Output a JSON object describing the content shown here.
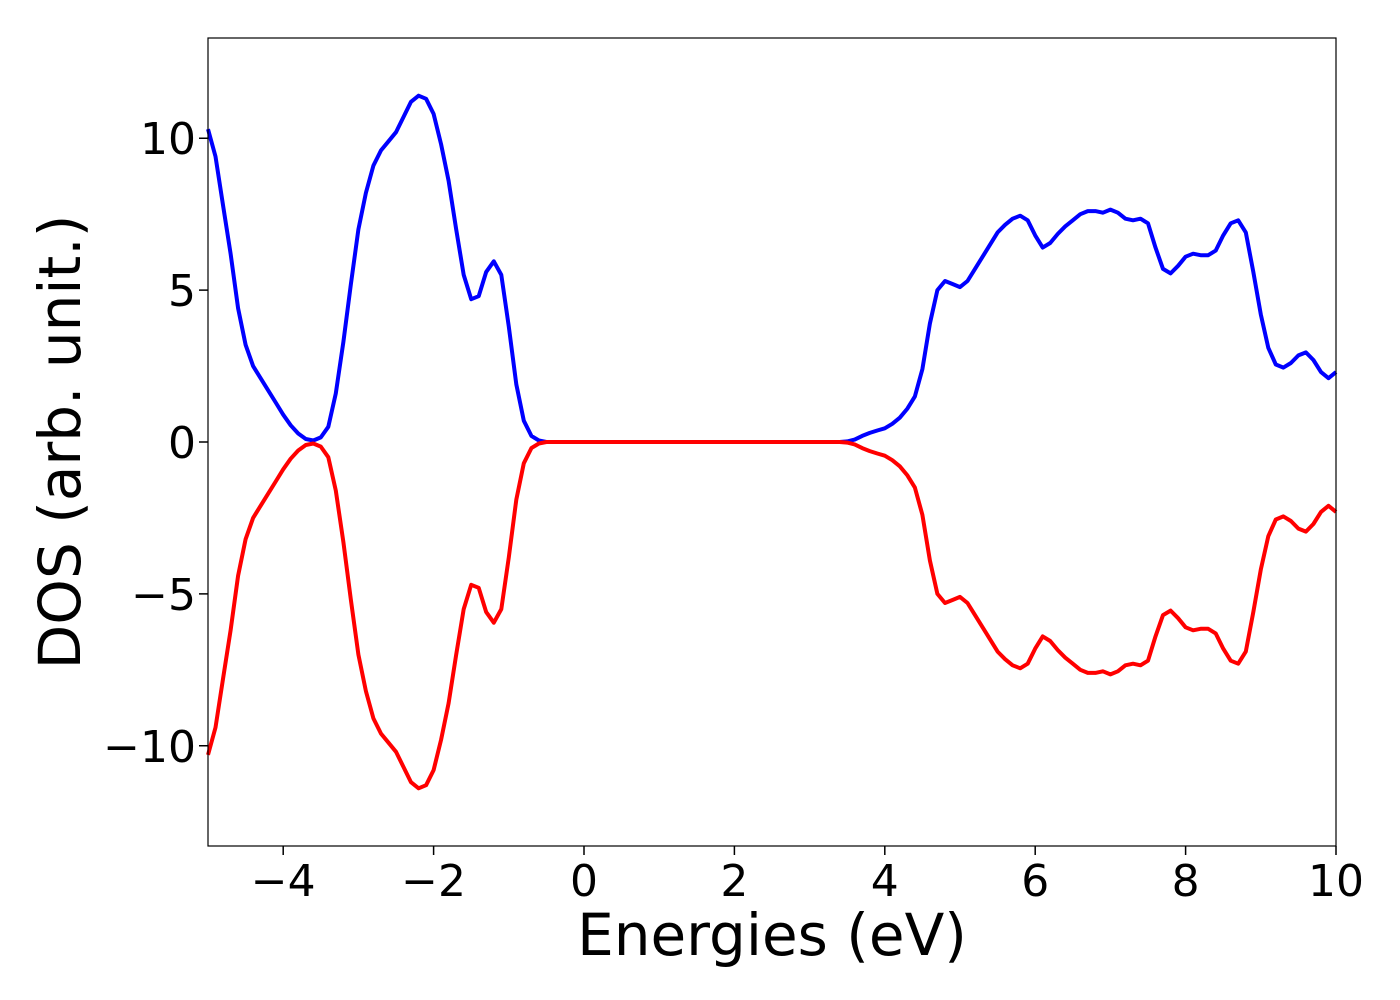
{
  "chart_data": {
    "type": "line",
    "xlabel": "Energies (eV)",
    "ylabel": "DOS (arb. unit.)",
    "xlim": [
      -5,
      10
    ],
    "ylim": [
      -13.3,
      13.3
    ],
    "x_ticks": [
      -4,
      -2,
      0,
      2,
      4,
      6,
      8,
      10
    ],
    "x_tick_labels": [
      "−4",
      "−2",
      "0",
      "2",
      "4",
      "6",
      "8",
      "10"
    ],
    "y_ticks": [
      -10,
      -5,
      0,
      5,
      10
    ],
    "y_tick_labels": [
      "−10",
      "−5",
      "0",
      "5",
      "10"
    ],
    "grid": false,
    "series": [
      {
        "color": "#0000ff",
        "points": [
          [
            -5.0,
            10.3
          ],
          [
            -4.9,
            9.4
          ],
          [
            -4.8,
            7.8
          ],
          [
            -4.7,
            6.2
          ],
          [
            -4.6,
            4.4
          ],
          [
            -4.5,
            3.2
          ],
          [
            -4.4,
            2.5
          ],
          [
            -4.3,
            2.1
          ],
          [
            -4.2,
            1.7
          ],
          [
            -4.1,
            1.3
          ],
          [
            -4.0,
            0.9
          ],
          [
            -3.9,
            0.55
          ],
          [
            -3.8,
            0.28
          ],
          [
            -3.7,
            0.1
          ],
          [
            -3.6,
            0.05
          ],
          [
            -3.5,
            0.15
          ],
          [
            -3.4,
            0.5
          ],
          [
            -3.3,
            1.6
          ],
          [
            -3.2,
            3.3
          ],
          [
            -3.1,
            5.2
          ],
          [
            -3.0,
            7.0
          ],
          [
            -2.9,
            8.2
          ],
          [
            -2.8,
            9.1
          ],
          [
            -2.7,
            9.6
          ],
          [
            -2.6,
            9.9
          ],
          [
            -2.5,
            10.2
          ],
          [
            -2.4,
            10.7
          ],
          [
            -2.3,
            11.2
          ],
          [
            -2.2,
            11.4
          ],
          [
            -2.1,
            11.3
          ],
          [
            -2.0,
            10.8
          ],
          [
            -1.9,
            9.8
          ],
          [
            -1.8,
            8.6
          ],
          [
            -1.7,
            7.0
          ],
          [
            -1.6,
            5.5
          ],
          [
            -1.5,
            4.7
          ],
          [
            -1.4,
            4.8
          ],
          [
            -1.3,
            5.6
          ],
          [
            -1.2,
            5.95
          ],
          [
            -1.1,
            5.5
          ],
          [
            -1.0,
            3.8
          ],
          [
            -0.9,
            1.9
          ],
          [
            -0.8,
            0.7
          ],
          [
            -0.7,
            0.2
          ],
          [
            -0.6,
            0.05
          ],
          [
            -0.5,
            0.0
          ],
          [
            0.0,
            0.0
          ],
          [
            1.0,
            0.0
          ],
          [
            2.0,
            0.0
          ],
          [
            3.0,
            0.0
          ],
          [
            3.4,
            0.0
          ],
          [
            3.5,
            0.02
          ],
          [
            3.6,
            0.08
          ],
          [
            3.7,
            0.2
          ],
          [
            3.8,
            0.3
          ],
          [
            3.9,
            0.38
          ],
          [
            4.0,
            0.45
          ],
          [
            4.1,
            0.6
          ],
          [
            4.2,
            0.8
          ],
          [
            4.3,
            1.1
          ],
          [
            4.4,
            1.5
          ],
          [
            4.5,
            2.4
          ],
          [
            4.6,
            3.9
          ],
          [
            4.7,
            5.0
          ],
          [
            4.8,
            5.3
          ],
          [
            4.9,
            5.2
          ],
          [
            5.0,
            5.1
          ],
          [
            5.1,
            5.3
          ],
          [
            5.2,
            5.7
          ],
          [
            5.3,
            6.1
          ],
          [
            5.4,
            6.5
          ],
          [
            5.5,
            6.9
          ],
          [
            5.6,
            7.15
          ],
          [
            5.7,
            7.35
          ],
          [
            5.8,
            7.45
          ],
          [
            5.9,
            7.3
          ],
          [
            6.0,
            6.8
          ],
          [
            6.1,
            6.4
          ],
          [
            6.2,
            6.55
          ],
          [
            6.3,
            6.85
          ],
          [
            6.4,
            7.1
          ],
          [
            6.5,
            7.3
          ],
          [
            6.6,
            7.5
          ],
          [
            6.7,
            7.6
          ],
          [
            6.8,
            7.6
          ],
          [
            6.9,
            7.55
          ],
          [
            7.0,
            7.65
          ],
          [
            7.1,
            7.55
          ],
          [
            7.2,
            7.35
          ],
          [
            7.3,
            7.3
          ],
          [
            7.4,
            7.35
          ],
          [
            7.5,
            7.2
          ],
          [
            7.6,
            6.4
          ],
          [
            7.7,
            5.7
          ],
          [
            7.8,
            5.55
          ],
          [
            7.9,
            5.8
          ],
          [
            8.0,
            6.1
          ],
          [
            8.1,
            6.2
          ],
          [
            8.2,
            6.15
          ],
          [
            8.3,
            6.15
          ],
          [
            8.4,
            6.3
          ],
          [
            8.5,
            6.8
          ],
          [
            8.6,
            7.2
          ],
          [
            8.7,
            7.3
          ],
          [
            8.8,
            6.9
          ],
          [
            8.9,
            5.6
          ],
          [
            9.0,
            4.2
          ],
          [
            9.1,
            3.1
          ],
          [
            9.2,
            2.55
          ],
          [
            9.3,
            2.45
          ],
          [
            9.4,
            2.6
          ],
          [
            9.5,
            2.85
          ],
          [
            9.6,
            2.95
          ],
          [
            9.7,
            2.7
          ],
          [
            9.8,
            2.3
          ],
          [
            9.9,
            2.1
          ],
          [
            10.0,
            2.3
          ]
        ]
      },
      {
        "color": "#ff0000",
        "mirror_of_series": 0,
        "scale": -1
      }
    ]
  }
}
